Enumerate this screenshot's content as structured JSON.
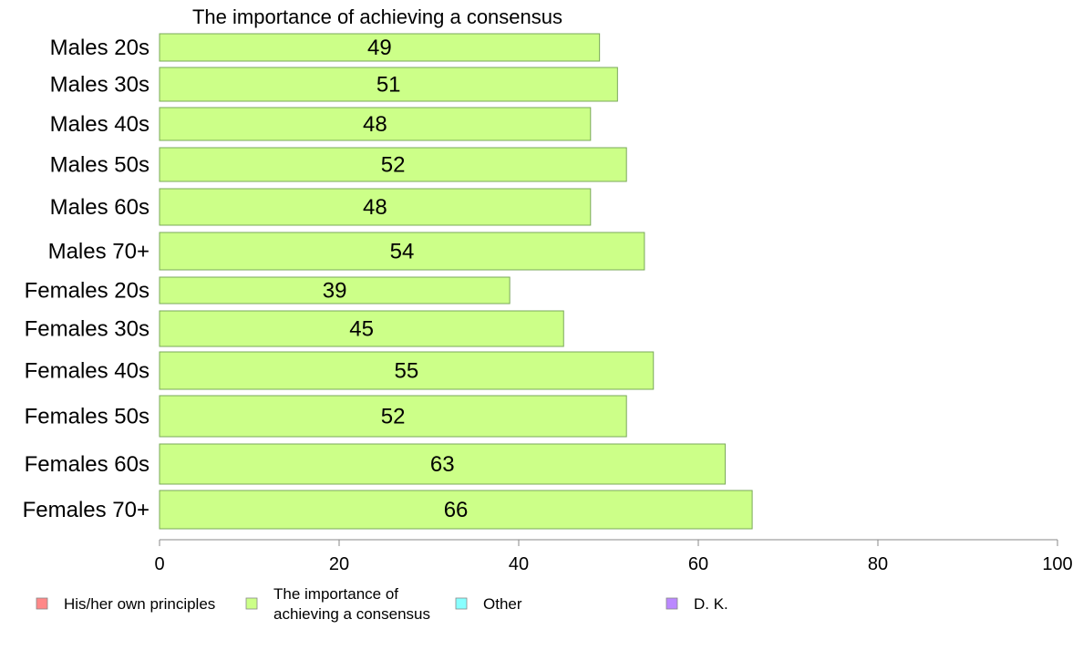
{
  "chart_data": {
    "type": "bar",
    "orientation": "horizontal",
    "title": "The importance of achieving a consensus",
    "categories": [
      "Males 20s",
      "Males 30s",
      "Males 40s",
      "Males 50s",
      "Males 60s",
      "Males 70+",
      "Females 20s",
      "Females 30s",
      "Females 40s",
      "Females 50s",
      "Females 60s",
      "Females 70+"
    ],
    "values": [
      49,
      51,
      48,
      52,
      48,
      54,
      39,
      45,
      55,
      52,
      63,
      66
    ],
    "value_labels": [
      "49",
      "51",
      "48",
      "52",
      "48",
      "54",
      "39",
      "45",
      "55",
      "52",
      "63",
      "66"
    ],
    "bar_color": "#ccff88",
    "bar_stroke": "#7aa85a",
    "xlim": [
      0,
      100
    ],
    "xticks": [
      0,
      20,
      40,
      60,
      80,
      100
    ],
    "xtick_labels": [
      "0",
      "20",
      "40",
      "60",
      "80",
      "100"
    ],
    "grid": false,
    "legend_position": "bottom",
    "legend": [
      {
        "label": "His/her own principles",
        "color": "#ff8888"
      },
      {
        "label": "The importance of achieving a consensus",
        "lines": [
          "The importance of",
          "achieving a consensus"
        ],
        "color": "#ccff88"
      },
      {
        "label": "Other",
        "color": "#88ffff"
      },
      {
        "label": "D. K.",
        "color": "#bb88ff"
      }
    ]
  }
}
